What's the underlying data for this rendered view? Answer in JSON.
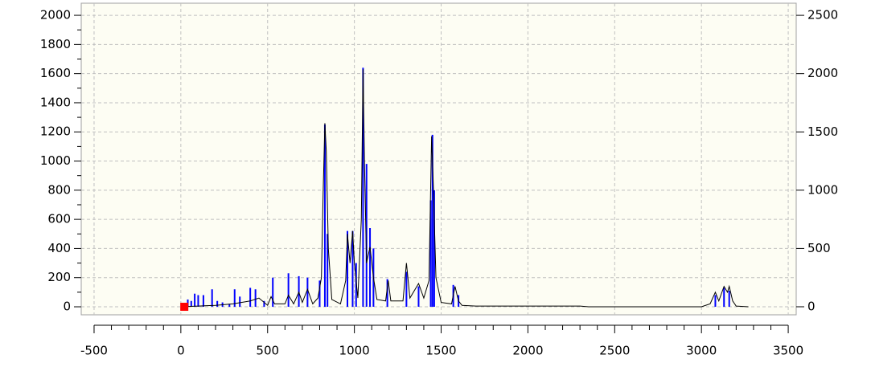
{
  "chart_data": {
    "type": "line",
    "xlim": [
      -574,
      3546
    ],
    "xticks": [
      -500,
      0,
      500,
      1000,
      1500,
      2000,
      2500,
      3000,
      3500
    ],
    "ylim": [
      -55,
      2083
    ],
    "yticks": [
      0,
      200,
      400,
      600,
      800,
      1000,
      1200,
      1400,
      1600,
      1800,
      2000
    ],
    "y2lim": [
      -69,
      2604
    ],
    "y2ticks": [
      0,
      500,
      1000,
      1500,
      2000,
      2500
    ],
    "grid": true,
    "sticks": {
      "color": "#0000ff",
      "x": [
        40,
        60,
        80,
        100,
        130,
        180,
        210,
        240,
        280,
        310,
        340,
        400,
        430,
        480,
        530,
        620,
        680,
        730,
        800,
        830,
        845,
        960,
        990,
        1010,
        1050,
        1070,
        1090,
        1110,
        1190,
        1300,
        1370,
        1440,
        1450,
        1460,
        1570,
        1600,
        3080,
        3130,
        3160
      ],
      "values": [
        50,
        40,
        90,
        80,
        80,
        120,
        40,
        30,
        20,
        120,
        70,
        130,
        120,
        40,
        200,
        230,
        210,
        200,
        180,
        1250,
        500,
        520,
        520,
        300,
        1640,
        980,
        540,
        400,
        190,
        240,
        140,
        730,
        1180,
        800,
        150,
        80,
        80,
        130,
        110
      ]
    },
    "line": {
      "color": "#000000",
      "x": [
        0,
        100,
        200,
        300,
        400,
        450,
        500,
        520,
        540,
        600,
        620,
        650,
        680,
        700,
        730,
        760,
        790,
        810,
        820,
        830,
        838,
        850,
        870,
        920,
        950,
        960,
        975,
        990,
        1000,
        1020,
        1040,
        1050,
        1058,
        1070,
        1090,
        1110,
        1130,
        1180,
        1195,
        1210,
        1280,
        1300,
        1320,
        1370,
        1400,
        1430,
        1445,
        1455,
        1470,
        1500,
        1560,
        1580,
        1600,
        1620,
        1700,
        2300,
        2350,
        3000,
        3050,
        3080,
        3100,
        3130,
        3150,
        3160,
        3180,
        3200,
        3270
      ],
      "values": [
        0,
        5,
        10,
        20,
        40,
        60,
        10,
        70,
        20,
        20,
        80,
        20,
        100,
        30,
        120,
        20,
        60,
        200,
        780,
        1260,
        1070,
        400,
        50,
        20,
        180,
        500,
        300,
        520,
        300,
        60,
        600,
        1630,
        1000,
        300,
        410,
        200,
        50,
        40,
        180,
        40,
        40,
        300,
        60,
        160,
        60,
        180,
        1170,
        830,
        200,
        30,
        20,
        140,
        40,
        10,
        5,
        5,
        0,
        0,
        20,
        100,
        40,
        140,
        100,
        140,
        40,
        5,
        0
      ]
    },
    "marker": {
      "x": 20,
      "y": 0,
      "color": "#ff0000"
    }
  }
}
